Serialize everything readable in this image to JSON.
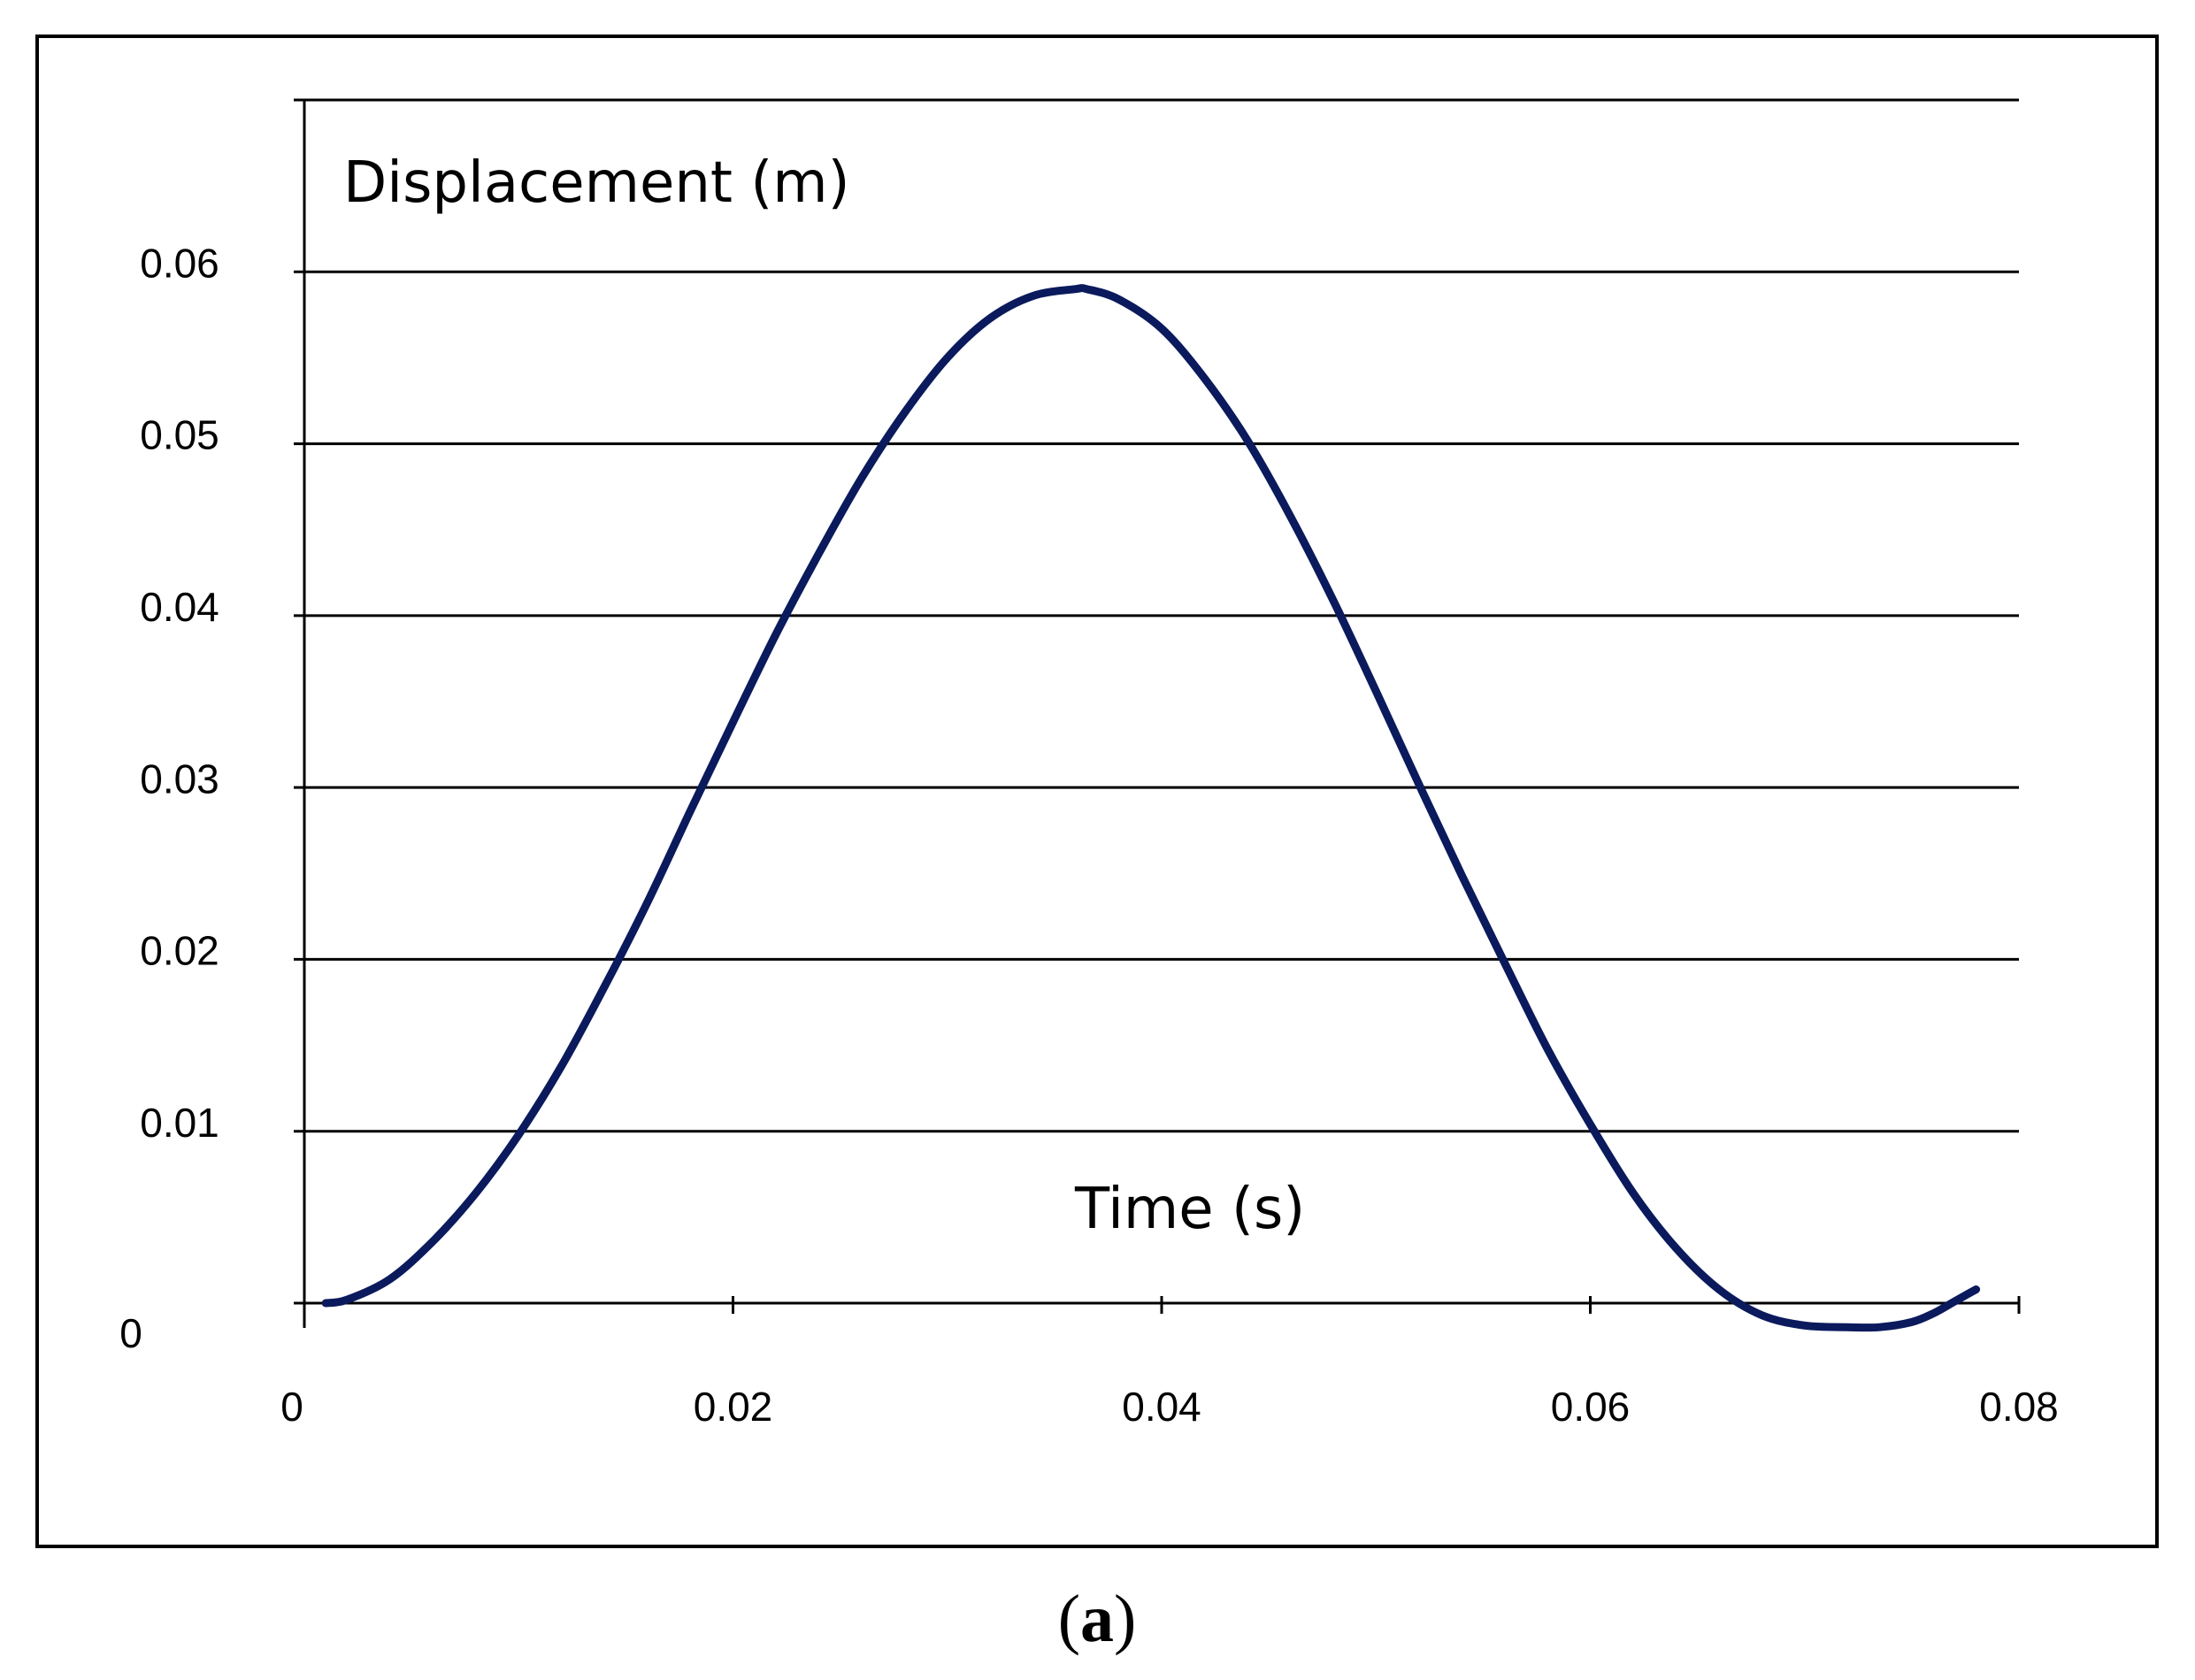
{
  "chart_data": {
    "type": "line",
    "title": "",
    "ylabel": "Displacement  (m)",
    "xlabel": "Time (s)",
    "xlim": [
      0,
      0.08
    ],
    "ylim": [
      0,
      0.06
    ],
    "x_ticks": [
      "0",
      "0.02",
      "0.04",
      "0.06",
      "0.08"
    ],
    "y_ticks": [
      "0",
      "0.01",
      "0.02",
      "0.03",
      "0.04",
      "0.05",
      "0.06"
    ],
    "grid": true,
    "line_color": "#0a1a5c",
    "series": [
      {
        "x": [
          0.001,
          0.002,
          0.004,
          0.006,
          0.008,
          0.01,
          0.012,
          0.014,
          0.016,
          0.018,
          0.02,
          0.022,
          0.024,
          0.026,
          0.028,
          0.03,
          0.032,
          0.034,
          0.036,
          0.0365,
          0.038,
          0.04,
          0.042,
          0.044,
          0.046,
          0.048,
          0.05,
          0.052,
          0.054,
          0.056,
          0.058,
          0.06,
          0.062,
          0.064,
          0.066,
          0.068,
          0.07,
          0.072,
          0.0735,
          0.075,
          0.076,
          0.077,
          0.078
        ],
        "y": [
          0.0,
          0.0002,
          0.0014,
          0.0036,
          0.0064,
          0.0098,
          0.0138,
          0.0184,
          0.0233,
          0.0286,
          0.0338,
          0.0389,
          0.0436,
          0.048,
          0.0518,
          0.055,
          0.0573,
          0.0586,
          0.059,
          0.059,
          0.0584,
          0.0567,
          0.0538,
          0.0502,
          0.0458,
          0.0409,
          0.0356,
          0.0302,
          0.0249,
          0.0198,
          0.0148,
          0.0104,
          0.0064,
          0.0032,
          0.0008,
          -0.0007,
          -0.0013,
          -0.0014,
          -0.0014,
          -0.0011,
          -0.0006,
          0.0001,
          0.0008
        ]
      }
    ]
  },
  "caption": {
    "open": "(",
    "letter": "a",
    "close": ")"
  }
}
